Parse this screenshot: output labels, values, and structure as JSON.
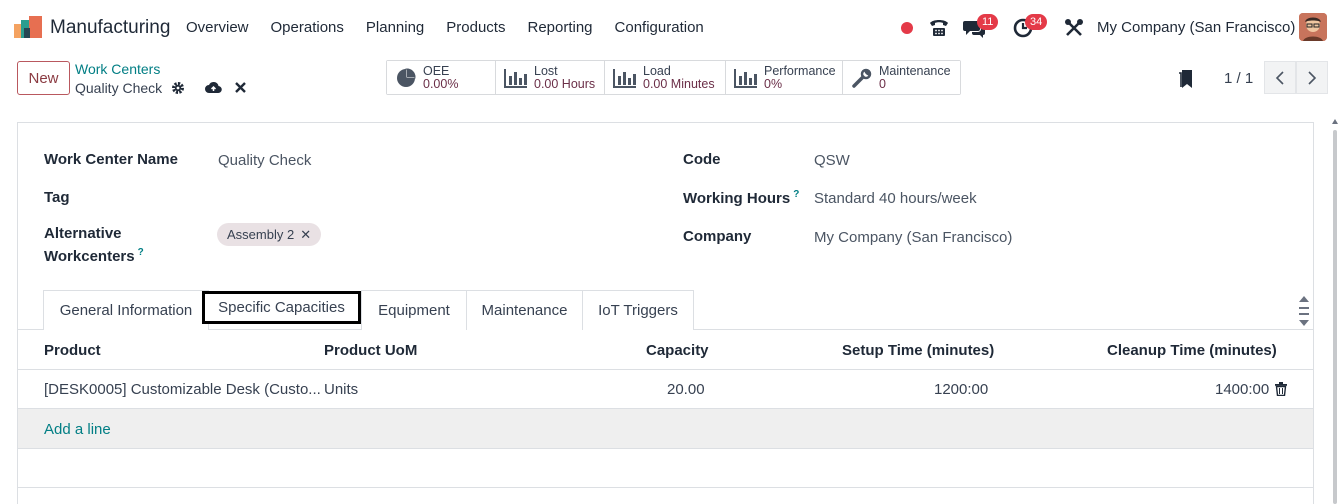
{
  "navbar": {
    "app_name": "Manufacturing",
    "menu": [
      "Overview",
      "Operations",
      "Planning",
      "Products",
      "Reporting",
      "Configuration"
    ],
    "chat_badge": "11",
    "activity_badge": "34",
    "company": "My Company (San Francisco)"
  },
  "control": {
    "new_label": "New",
    "breadcrumb": "Work Centers",
    "record_title": "Quality Check",
    "smart_buttons": [
      {
        "label": "OEE",
        "value": "0.00%",
        "icon": "pie-chart-icon"
      },
      {
        "label": "Lost",
        "value": "0.00 Hours",
        "icon": "bar-chart-icon"
      },
      {
        "label": "Load",
        "value": "0.00 Minutes",
        "icon": "bar-chart-icon"
      },
      {
        "label": "Performance",
        "value": "0%",
        "icon": "bar-chart-icon"
      },
      {
        "label": "Maintenance",
        "value": "0",
        "icon": "wrench-icon"
      }
    ],
    "pager": "1 / 1"
  },
  "form": {
    "name_label": "Work Center Name",
    "name_value": "Quality Check",
    "tag_label": "Tag",
    "alt_label_1": "Alternative",
    "alt_label_2": "Workcenters",
    "alt_tag": "Assembly 2",
    "code_label": "Code",
    "code_value": "QSW",
    "hours_label": "Working Hours",
    "hours_value": "Standard 40 hours/week",
    "company_label": "Company",
    "company_value": "My Company (San Francisco)",
    "help_mark": "?"
  },
  "tabs": [
    "General Information",
    "Specific Capacities",
    "Equipment",
    "Maintenance",
    "IoT Triggers"
  ],
  "table": {
    "headers": [
      "Product",
      "Product UoM",
      "Capacity",
      "Setup Time (minutes)",
      "Cleanup Time (minutes)"
    ],
    "rows": [
      [
        "[DESK0005] Customizable Desk (Custo...",
        "Units",
        "20.00",
        "1200:00",
        "1400:00"
      ]
    ],
    "add_line": "Add a line"
  },
  "colors": {
    "accent": "#017e84",
    "brand": "#714b67",
    "badge": "#e43a48"
  }
}
